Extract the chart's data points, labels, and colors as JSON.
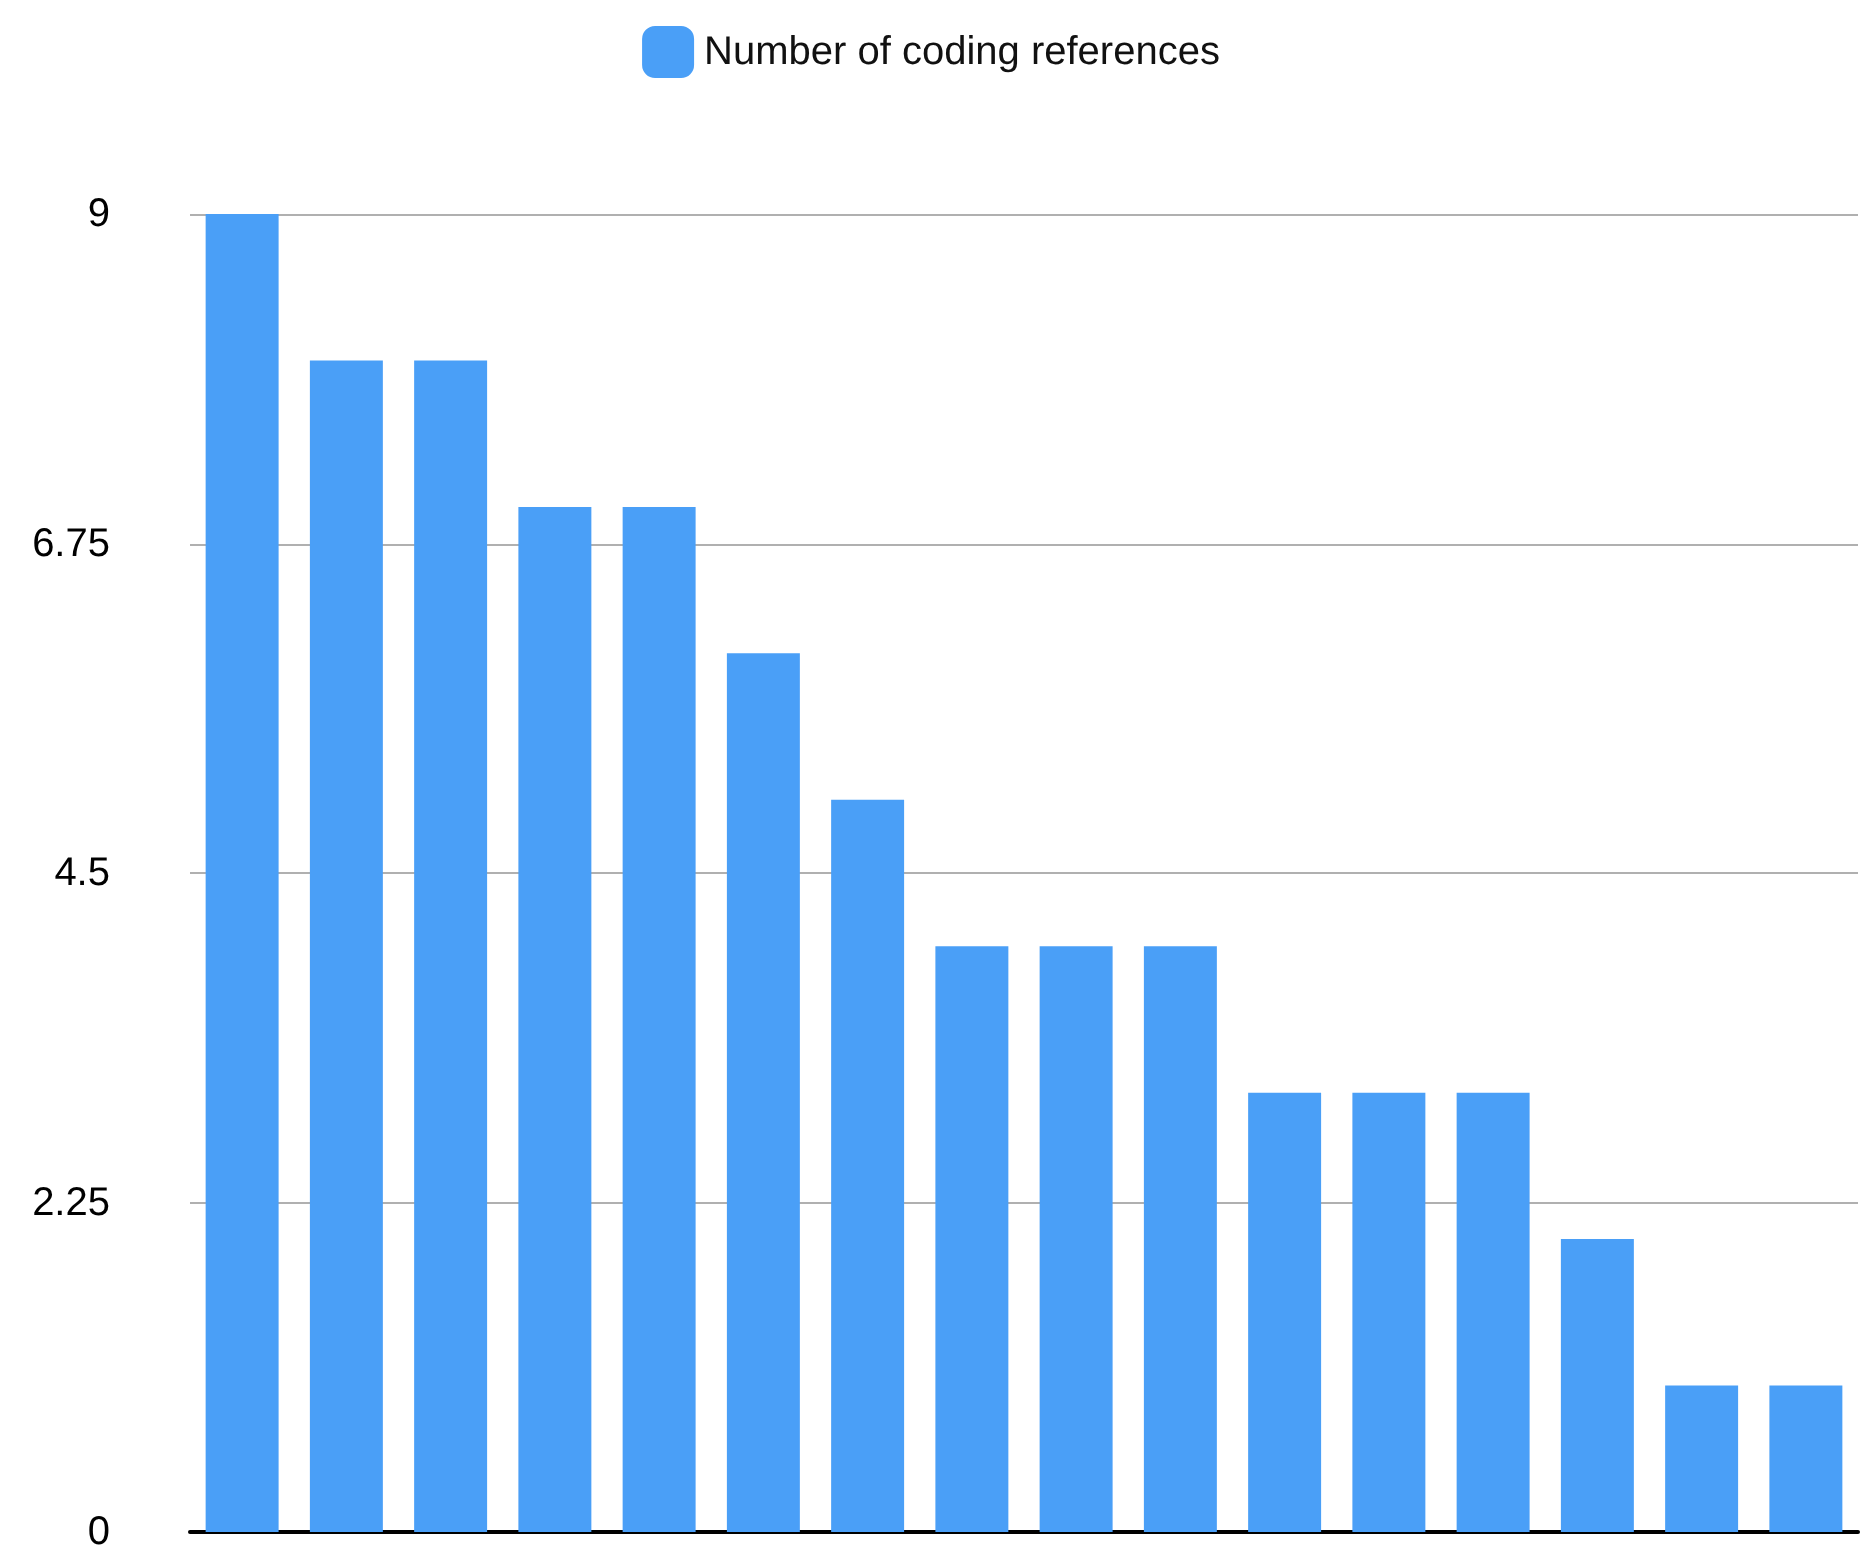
{
  "chart_data": {
    "type": "bar",
    "categories": [
      null,
      null,
      null,
      null,
      null,
      null,
      null,
      null,
      null,
      null,
      null,
      null,
      null,
      null,
      null,
      null
    ],
    "series": [
      {
        "name": "Number of coding references",
        "color": "#4a9ff7",
        "values": [
          9,
          8,
          8,
          7,
          7,
          6,
          5,
          4,
          4,
          4,
          3,
          3,
          3,
          2,
          1,
          1
        ]
      }
    ],
    "ylim": [
      0,
      9
    ],
    "yticks": [
      0,
      2.25,
      4.5,
      6.75,
      9
    ],
    "grid": "y",
    "legend": "top"
  }
}
